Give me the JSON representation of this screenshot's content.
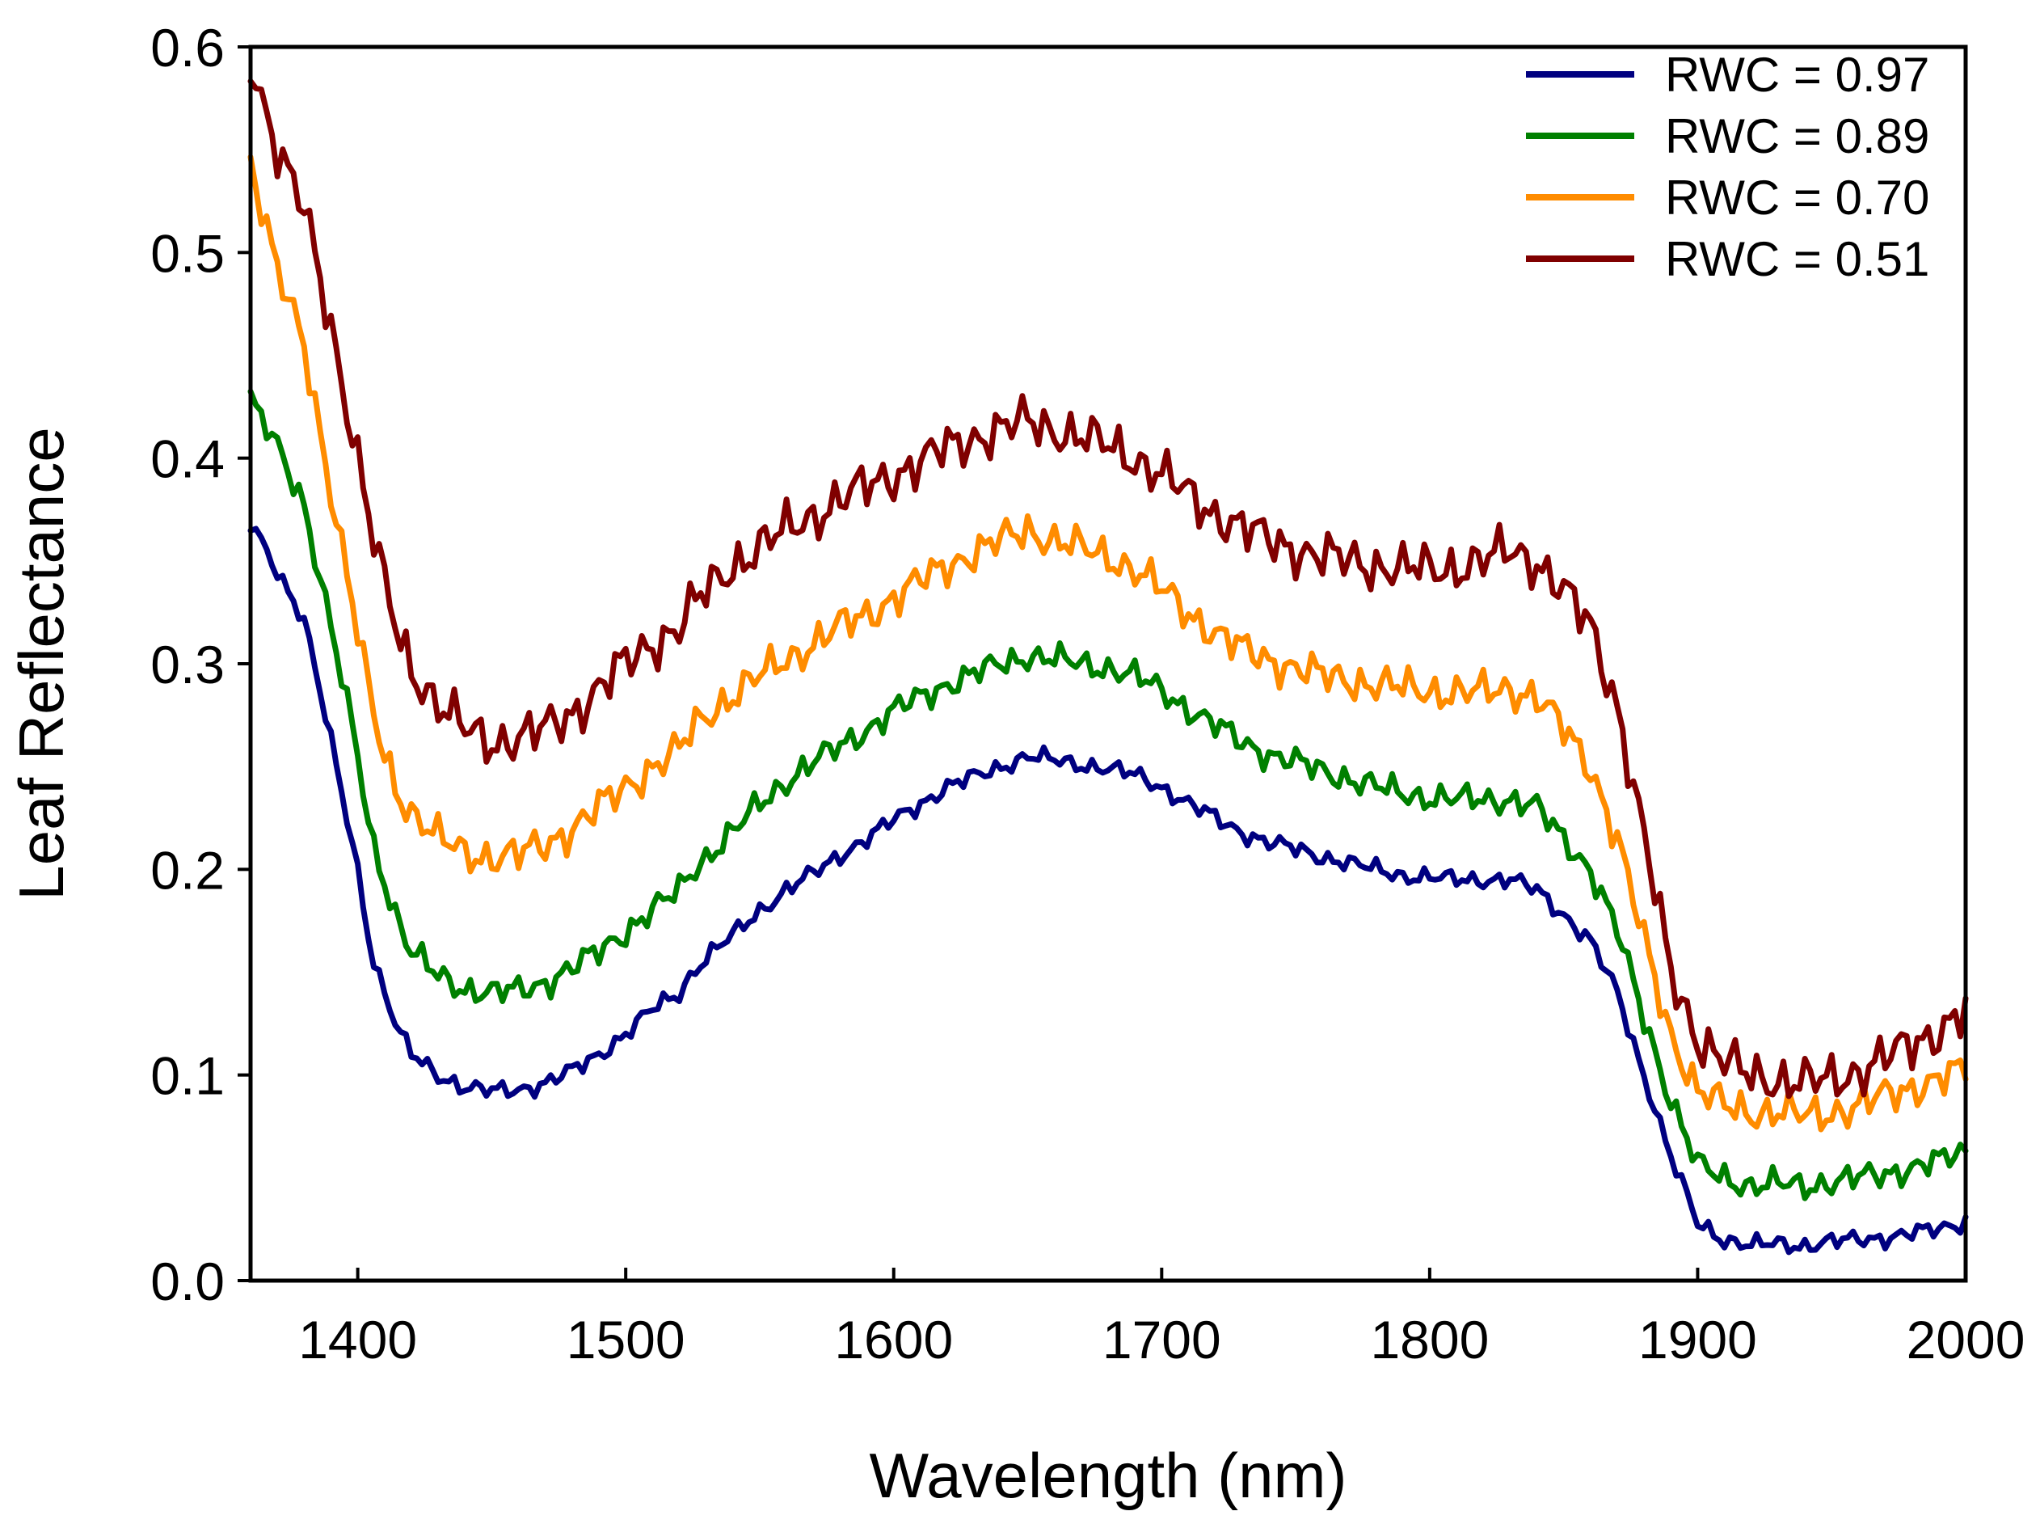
{
  "chart_data": {
    "type": "line",
    "title": "",
    "xlabel": "Wavelength (nm)",
    "ylabel": "Leaf Reflectance",
    "xlim": [
      1360,
      2000
    ],
    "ylim": [
      0.0,
      0.6
    ],
    "xticks": [
      1400,
      1500,
      1600,
      1700,
      1800,
      1900,
      2000
    ],
    "xtick_labels": [
      "1400",
      "1500",
      "1600",
      "1700",
      "1800",
      "1900",
      "2000"
    ],
    "yticks": [
      0.0,
      0.1,
      0.2,
      0.3,
      0.4,
      0.5,
      0.6
    ],
    "ytick_labels": [
      "0.0",
      "0.1",
      "0.2",
      "0.3",
      "0.4",
      "0.5",
      "0.6"
    ],
    "grid": false,
    "legend_position": "top-right",
    "series": [
      {
        "name": "RWC = 0.97",
        "color": "#000080",
        "x": [
          1360,
          1370,
          1380,
          1390,
          1400,
          1405,
          1410,
          1415,
          1420,
          1430,
          1440,
          1450,
          1460,
          1470,
          1480,
          1490,
          1500,
          1510,
          1520,
          1525,
          1530,
          1540,
          1550,
          1560,
          1570,
          1580,
          1590,
          1600,
          1610,
          1620,
          1630,
          1640,
          1650,
          1660,
          1670,
          1680,
          1690,
          1700,
          1710,
          1720,
          1730,
          1740,
          1750,
          1760,
          1770,
          1780,
          1790,
          1800,
          1810,
          1820,
          1830,
          1840,
          1850,
          1860,
          1870,
          1880,
          1890,
          1900,
          1910,
          1920,
          1930,
          1940,
          1950,
          1960,
          1970,
          1980,
          1990,
          2000
        ],
        "y": [
          0.368,
          0.345,
          0.322,
          0.262,
          0.2,
          0.16,
          0.14,
          0.122,
          0.11,
          0.1,
          0.094,
          0.092,
          0.093,
          0.096,
          0.102,
          0.11,
          0.12,
          0.132,
          0.14,
          0.15,
          0.157,
          0.168,
          0.18,
          0.19,
          0.198,
          0.207,
          0.215,
          0.224,
          0.232,
          0.24,
          0.245,
          0.25,
          0.255,
          0.253,
          0.251,
          0.249,
          0.246,
          0.24,
          0.232,
          0.225,
          0.218,
          0.213,
          0.21,
          0.206,
          0.203,
          0.2,
          0.197,
          0.196,
          0.195,
          0.195,
          0.195,
          0.19,
          0.178,
          0.165,
          0.14,
          0.1,
          0.06,
          0.028,
          0.02,
          0.017,
          0.018,
          0.017,
          0.019,
          0.02,
          0.021,
          0.023,
          0.025,
          0.029
        ]
      },
      {
        "name": "RWC = 0.89",
        "color": "#008000",
        "x": [
          1360,
          1370,
          1380,
          1390,
          1400,
          1405,
          1410,
          1415,
          1420,
          1430,
          1440,
          1450,
          1460,
          1470,
          1480,
          1490,
          1500,
          1510,
          1520,
          1525,
          1530,
          1540,
          1550,
          1560,
          1570,
          1580,
          1590,
          1600,
          1610,
          1620,
          1630,
          1640,
          1650,
          1660,
          1670,
          1680,
          1690,
          1700,
          1710,
          1720,
          1730,
          1740,
          1750,
          1760,
          1770,
          1780,
          1790,
          1800,
          1810,
          1820,
          1830,
          1840,
          1850,
          1860,
          1870,
          1880,
          1890,
          1900,
          1910,
          1920,
          1930,
          1940,
          1950,
          1960,
          1970,
          1980,
          1990,
          2000
        ],
        "y": [
          0.428,
          0.405,
          0.378,
          0.318,
          0.255,
          0.215,
          0.195,
          0.175,
          0.16,
          0.148,
          0.142,
          0.14,
          0.141,
          0.145,
          0.152,
          0.16,
          0.17,
          0.18,
          0.19,
          0.2,
          0.206,
          0.218,
          0.232,
          0.243,
          0.252,
          0.26,
          0.268,
          0.277,
          0.284,
          0.29,
          0.295,
          0.3,
          0.304,
          0.302,
          0.3,
          0.298,
          0.294,
          0.287,
          0.278,
          0.27,
          0.262,
          0.256,
          0.252,
          0.248,
          0.244,
          0.24,
          0.237,
          0.235,
          0.234,
          0.234,
          0.234,
          0.23,
          0.215,
          0.2,
          0.17,
          0.128,
          0.088,
          0.056,
          0.05,
          0.046,
          0.047,
          0.046,
          0.048,
          0.05,
          0.052,
          0.055,
          0.058,
          0.063
        ]
      },
      {
        "name": "RWC = 0.70",
        "color": "#ff8c00",
        "x": [
          1360,
          1370,
          1380,
          1390,
          1400,
          1405,
          1410,
          1415,
          1420,
          1430,
          1440,
          1450,
          1460,
          1470,
          1480,
          1490,
          1500,
          1510,
          1520,
          1525,
          1530,
          1540,
          1550,
          1560,
          1570,
          1580,
          1590,
          1600,
          1610,
          1620,
          1630,
          1640,
          1650,
          1660,
          1670,
          1680,
          1690,
          1700,
          1710,
          1720,
          1730,
          1740,
          1750,
          1760,
          1770,
          1780,
          1790,
          1800,
          1810,
          1820,
          1830,
          1840,
          1850,
          1860,
          1870,
          1880,
          1890,
          1900,
          1910,
          1920,
          1930,
          1940,
          1950,
          1960,
          1970,
          1980,
          1990,
          2000
        ],
        "y": [
          0.545,
          0.49,
          0.455,
          0.385,
          0.315,
          0.28,
          0.255,
          0.238,
          0.228,
          0.215,
          0.208,
          0.206,
          0.207,
          0.212,
          0.22,
          0.23,
          0.24,
          0.25,
          0.258,
          0.268,
          0.275,
          0.285,
          0.294,
          0.302,
          0.31,
          0.318,
          0.324,
          0.332,
          0.34,
          0.348,
          0.354,
          0.36,
          0.365,
          0.36,
          0.356,
          0.352,
          0.346,
          0.336,
          0.325,
          0.315,
          0.307,
          0.302,
          0.298,
          0.294,
          0.292,
          0.29,
          0.288,
          0.287,
          0.286,
          0.286,
          0.288,
          0.284,
          0.268,
          0.25,
          0.215,
          0.165,
          0.12,
          0.092,
          0.085,
          0.082,
          0.082,
          0.08,
          0.082,
          0.085,
          0.09,
          0.094,
          0.098,
          0.102
        ]
      },
      {
        "name": "RWC = 0.51",
        "color": "#800000",
        "x": [
          1360,
          1370,
          1380,
          1390,
          1400,
          1405,
          1410,
          1415,
          1420,
          1430,
          1440,
          1450,
          1460,
          1470,
          1480,
          1490,
          1500,
          1510,
          1520,
          1525,
          1530,
          1540,
          1550,
          1560,
          1570,
          1580,
          1590,
          1600,
          1610,
          1620,
          1630,
          1640,
          1650,
          1660,
          1670,
          1680,
          1690,
          1700,
          1710,
          1720,
          1730,
          1740,
          1750,
          1760,
          1770,
          1780,
          1790,
          1800,
          1810,
          1820,
          1830,
          1840,
          1850,
          1860,
          1870,
          1880,
          1890,
          1900,
          1910,
          1920,
          1930,
          1940,
          1950,
          1960,
          1970,
          1980,
          1990,
          2000
        ],
        "y": [
          0.595,
          0.55,
          0.52,
          0.465,
          0.4,
          0.365,
          0.338,
          0.315,
          0.298,
          0.28,
          0.268,
          0.262,
          0.264,
          0.268,
          0.276,
          0.288,
          0.3,
          0.31,
          0.318,
          0.328,
          0.335,
          0.348,
          0.357,
          0.365,
          0.372,
          0.38,
          0.386,
          0.392,
          0.398,
          0.405,
          0.41,
          0.414,
          0.418,
          0.414,
          0.41,
          0.406,
          0.4,
          0.392,
          0.382,
          0.373,
          0.366,
          0.36,
          0.356,
          0.352,
          0.35,
          0.348,
          0.346,
          0.346,
          0.347,
          0.35,
          0.355,
          0.35,
          0.335,
          0.318,
          0.28,
          0.215,
          0.15,
          0.118,
          0.106,
          0.1,
          0.098,
          0.096,
          0.098,
          0.102,
          0.108,
          0.115,
          0.122,
          0.131
        ]
      }
    ]
  }
}
